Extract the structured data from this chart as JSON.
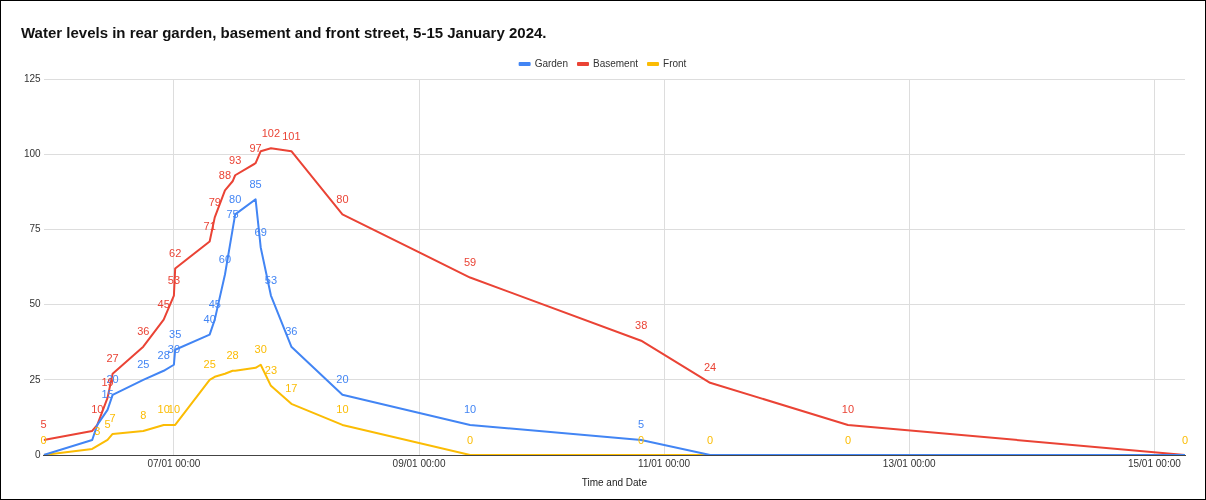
{
  "chart_data": {
    "type": "line",
    "title": "Water levels in rear garden, basement and front street, 5-15 January 2024.",
    "xlabel": "Time and Date",
    "x": [
      "2024-01-05T22:30",
      "2024-01-06T08:00",
      "2024-01-06T09:00",
      "2024-01-06T11:00",
      "2024-01-06T12:00",
      "2024-01-06T18:00",
      "2024-01-06T22:00",
      "2024-01-07T00:00",
      "2024-01-07T00:15",
      "2024-01-07T07:00",
      "2024-01-07T08:00",
      "2024-01-07T10:00",
      "2024-01-07T11:30",
      "2024-01-07T12:00",
      "2024-01-07T16:00",
      "2024-01-07T17:00",
      "2024-01-07T19:00",
      "2024-01-07T23:00",
      "2024-01-08T09:00",
      "2024-01-09T10:00",
      "2024-01-10T19:30",
      "2024-01-11T09:00",
      "2024-01-12T12:00",
      "2024-01-15T06:00"
    ],
    "series": [
      {
        "name": "Garden",
        "color": "#4285f4",
        "values": [
          0,
          5,
          10,
          15,
          20,
          25,
          28,
          30,
          35,
          40,
          45,
          60,
          75,
          80,
          85,
          69,
          53,
          36,
          20,
          10,
          5,
          0,
          0,
          0
        ],
        "value_labels": [
          null,
          null,
          null,
          "15",
          "20",
          "25",
          "28",
          "30",
          "35",
          "40",
          "45",
          "60",
          "75",
          "80",
          "85",
          "69",
          "53",
          "36",
          "20",
          "10",
          "5",
          null,
          null,
          null
        ]
      },
      {
        "name": "Basement",
        "color": "#ea4335",
        "values": [
          5,
          8,
          10,
          19,
          27,
          36,
          45,
          53,
          62,
          71,
          79,
          88,
          91,
          93,
          97,
          101,
          102,
          101,
          80,
          59,
          38,
          24,
          10,
          0
        ],
        "value_labels": [
          "5",
          null,
          "10",
          "19",
          "27",
          "36",
          "45",
          "53",
          "62",
          "71",
          "79",
          "88",
          null,
          "93",
          "97",
          null,
          "102",
          "101",
          "80",
          "59",
          "38",
          "24",
          "10",
          null
        ]
      },
      {
        "name": "Front",
        "color": "#fbbc04",
        "values": [
          0,
          2,
          3,
          5,
          7,
          8,
          10,
          10,
          10,
          25,
          26,
          27,
          28,
          28,
          29,
          30,
          23,
          17,
          10,
          0,
          0,
          0,
          0,
          0
        ],
        "value_labels": [
          "0",
          null,
          "3",
          "5",
          "7",
          "8",
          "10",
          "10",
          null,
          "25",
          null,
          null,
          "28",
          null,
          null,
          "30",
          "23",
          "17",
          "10",
          "0",
          "0",
          "0",
          "0",
          "0"
        ]
      }
    ],
    "xlim": [
      "2024-01-05T22:30",
      "2024-01-15T06:00"
    ],
    "xticks": [
      {
        "value": "2024-01-07T00:00",
        "label": "07/01 00:00"
      },
      {
        "value": "2024-01-09T00:00",
        "label": "09/01 00:00"
      },
      {
        "value": "2024-01-11T00:00",
        "label": "11/01 00:00"
      },
      {
        "value": "2024-01-13T00:00",
        "label": "13/01 00:00"
      },
      {
        "value": "2024-01-15T00:00",
        "label": "15/01 00:00"
      }
    ],
    "ylim": [
      0,
      125
    ],
    "yticks": [
      0,
      25,
      50,
      75,
      100,
      125
    ],
    "grid": true,
    "legend": "top",
    "marker": "none",
    "line_style": "solid"
  }
}
